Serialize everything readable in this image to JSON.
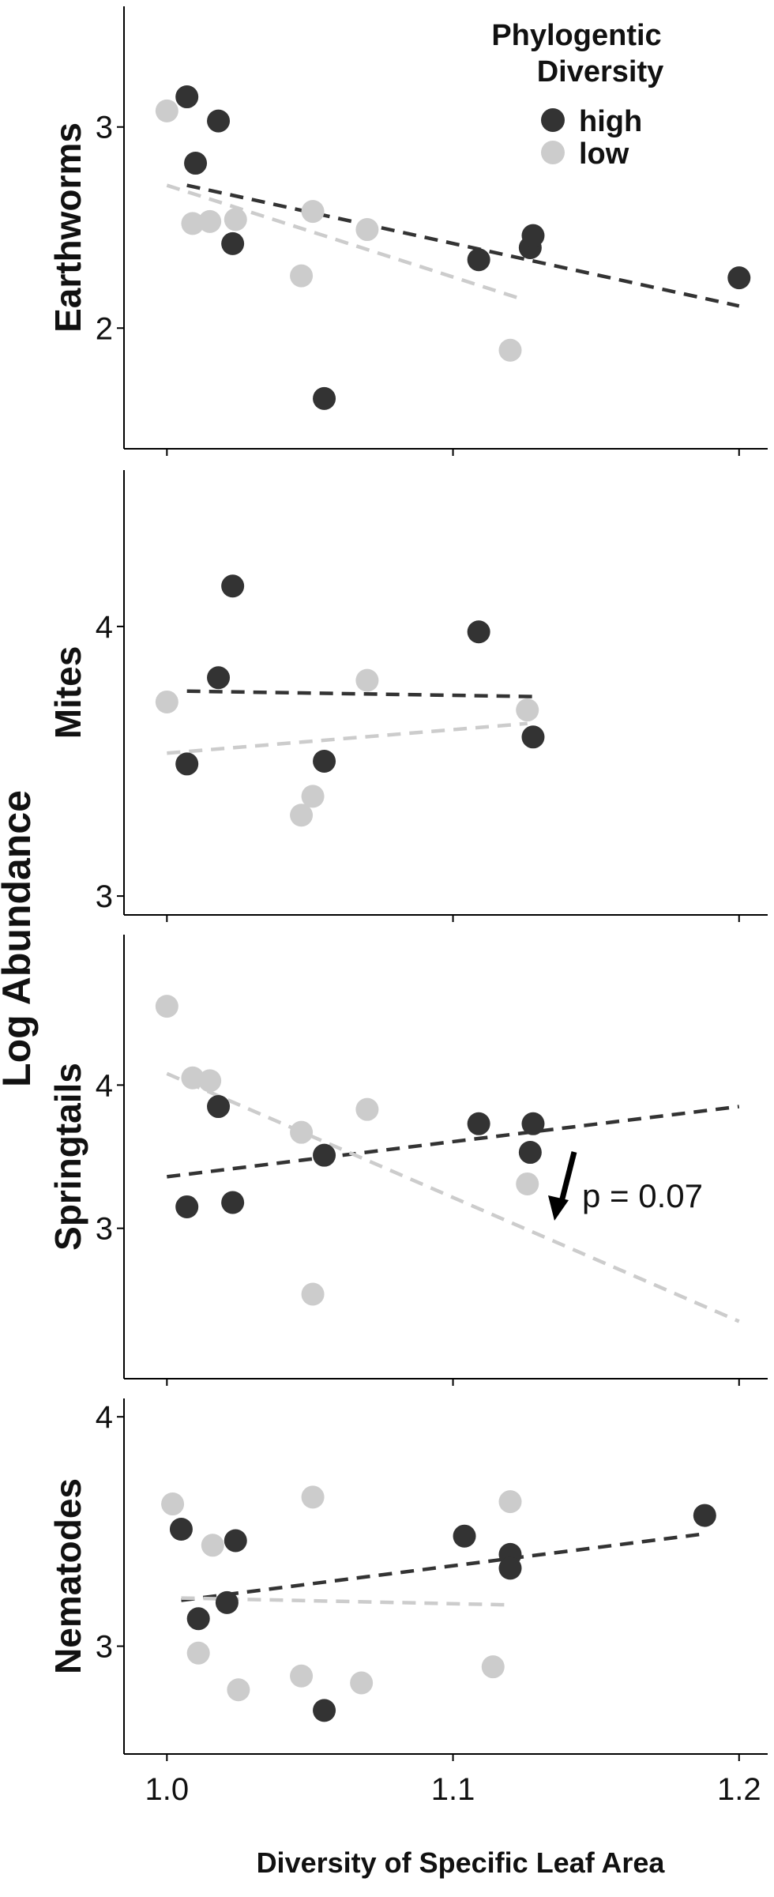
{
  "figure": {
    "ylabel": "Log Abundance",
    "colors": {
      "high": "#333333",
      "low": "#cccccc"
    }
  },
  "legend": {
    "title_line1": "Phylogentic",
    "title_line2": "Diversity",
    "items": [
      {
        "key": "high",
        "label": "high"
      },
      {
        "key": "low",
        "label": "low"
      }
    ]
  },
  "chart_data": {
    "type": "scatter",
    "xlabel": "Diversity of Specific Leaf Area",
    "xlim": [
      0.985,
      1.21
    ],
    "xticks": [
      1.0,
      1.1,
      1.2
    ],
    "xtick_labels": [
      "1.0",
      "1.1",
      "1.2"
    ],
    "panels": [
      {
        "label": "Earthworms",
        "ylim": [
          1.4,
          3.6
        ],
        "yticks": [
          2,
          3
        ],
        "series": [
          {
            "name": "high",
            "points": [
              [
                1.007,
                3.15
              ],
              [
                1.018,
                3.03
              ],
              [
                1.01,
                2.82
              ],
              [
                1.023,
                2.42
              ],
              [
                1.055,
                1.65
              ],
              [
                1.109,
                2.34
              ],
              [
                1.127,
                2.4
              ],
              [
                1.128,
                2.46
              ],
              [
                1.2,
                2.25
              ]
            ],
            "trend": [
              [
                1.007,
                2.71
              ],
              [
                1.2,
                2.11
              ]
            ]
          },
          {
            "name": "low",
            "points": [
              [
                1.0,
                3.08
              ],
              [
                1.009,
                2.52
              ],
              [
                1.015,
                2.53
              ],
              [
                1.024,
                2.54
              ],
              [
                1.047,
                2.26
              ],
              [
                1.051,
                2.58
              ],
              [
                1.07,
                2.49
              ],
              [
                1.12,
                1.89
              ]
            ],
            "trend": [
              [
                1.0,
                2.71
              ],
              [
                1.125,
                2.14
              ]
            ]
          }
        ]
      },
      {
        "label": "Mites",
        "ylim": [
          2.93,
          4.58
        ],
        "yticks": [
          3,
          4
        ],
        "series": [
          {
            "name": "high",
            "points": [
              [
                1.007,
                3.49
              ],
              [
                1.018,
                3.81
              ],
              [
                1.023,
                4.15
              ],
              [
                1.055,
                3.5
              ],
              [
                1.109,
                3.98
              ],
              [
                1.128,
                3.59
              ]
            ],
            "trend": [
              [
                1.007,
                3.76
              ],
              [
                1.128,
                3.74
              ]
            ]
          },
          {
            "name": "low",
            "points": [
              [
                1.0,
                3.72
              ],
              [
                1.047,
                3.3
              ],
              [
                1.051,
                3.37
              ],
              [
                1.07,
                3.8
              ],
              [
                1.126,
                3.69
              ]
            ],
            "trend": [
              [
                1.0,
                3.53
              ],
              [
                1.126,
                3.64
              ]
            ]
          }
        ]
      },
      {
        "label": "Springtails",
        "ylim": [
          1.95,
          5.05
        ],
        "yticks": [
          3,
          4
        ],
        "annotation": "p = 0.07",
        "series": [
          {
            "name": "high",
            "points": [
              [
                1.007,
                3.15
              ],
              [
                1.018,
                3.85
              ],
              [
                1.023,
                3.18
              ],
              [
                1.055,
                3.51
              ],
              [
                1.109,
                3.73
              ],
              [
                1.128,
                3.73
              ],
              [
                1.127,
                3.53
              ]
            ],
            "trend": [
              [
                1.0,
                3.36
              ],
              [
                1.2,
                3.85
              ]
            ]
          },
          {
            "name": "low",
            "points": [
              [
                1.0,
                4.55
              ],
              [
                1.009,
                4.05
              ],
              [
                1.015,
                4.03
              ],
              [
                1.047,
                3.67
              ],
              [
                1.051,
                2.54
              ],
              [
                1.07,
                3.83
              ],
              [
                1.126,
                3.31
              ]
            ],
            "trend": [
              [
                1.0,
                4.08
              ],
              [
                1.2,
                2.35
              ]
            ]
          }
        ]
      },
      {
        "label": "Nematodes",
        "ylim": [
          2.53,
          4.08
        ],
        "yticks": [
          3,
          4
        ],
        "series": [
          {
            "name": "high",
            "points": [
              [
                1.005,
                3.51
              ],
              [
                1.011,
                3.12
              ],
              [
                1.021,
                3.19
              ],
              [
                1.024,
                3.46
              ],
              [
                1.055,
                2.72
              ],
              [
                1.104,
                3.48
              ],
              [
                1.12,
                3.4
              ],
              [
                1.12,
                3.34
              ],
              [
                1.188,
                3.57
              ]
            ],
            "trend": [
              [
                1.005,
                3.2
              ],
              [
                1.188,
                3.49
              ]
            ]
          },
          {
            "name": "low",
            "points": [
              [
                1.002,
                3.62
              ],
              [
                1.011,
                2.97
              ],
              [
                1.016,
                3.44
              ],
              [
                1.025,
                2.81
              ],
              [
                1.047,
                2.87
              ],
              [
                1.051,
                3.65
              ],
              [
                1.068,
                2.84
              ],
              [
                1.114,
                2.91
              ],
              [
                1.12,
                3.63
              ]
            ],
            "trend": [
              [
                1.005,
                3.21
              ],
              [
                1.12,
                3.18
              ]
            ]
          }
        ]
      }
    ]
  }
}
